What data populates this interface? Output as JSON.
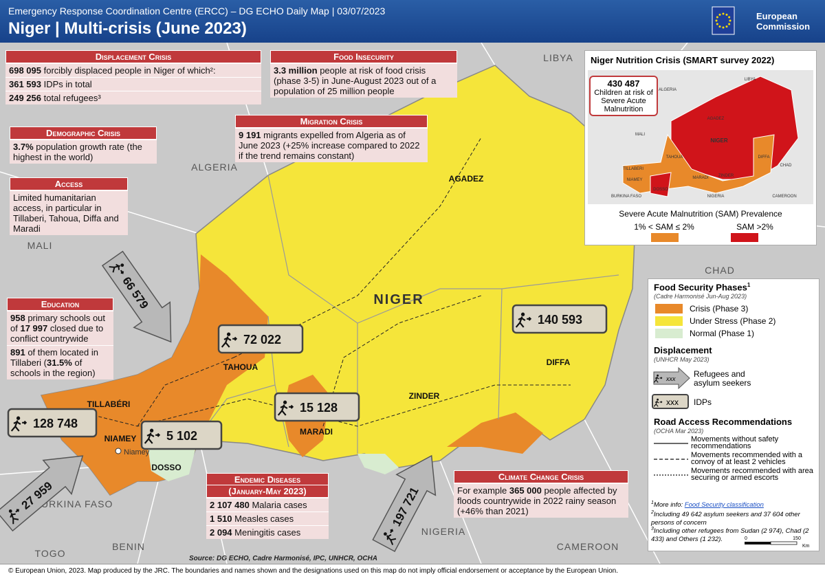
{
  "header": {
    "subtitle": "Emergency Response Coordination Centre (ERCC) – DG ECHO Daily Map | 03/07/2023",
    "title": "Niger | Multi-crisis (June 2023)",
    "logo": [
      "European",
      "Commission"
    ]
  },
  "boxes": {
    "displacement": {
      "title": "Displacement Crisis",
      "rows": [
        [
          {
            "b": "698 095"
          },
          " forcibly displaced people in Niger of which²:"
        ],
        [
          {
            "b": "361 593"
          },
          " IDPs in total"
        ],
        [
          {
            "b": "249 256"
          },
          " total refugees³"
        ]
      ]
    },
    "food": {
      "title": "Food Insecurity",
      "rows": [
        [
          {
            "b": "3.3 million"
          },
          "  people  at risk of food crisis (phase 3-5) in June-August 2023 out of a population of 25 million people"
        ]
      ]
    },
    "demographic": {
      "title": "Demographic Crisis",
      "rows": [
        [
          {
            "b": "3.7%"
          },
          " population growth rate (the highest in the world)"
        ]
      ]
    },
    "access": {
      "title": "Access",
      "rows": [
        [
          "Limited humanitarian access, in particular in Tillaberi, Tahoua, Diffa and Maradi"
        ]
      ]
    },
    "migration": {
      "title": "Migration Crisis",
      "rows": [
        [
          {
            "b": "9 191"
          },
          " migrants expelled from Algeria as of June 2023 (+25% increase compared to 2022 if the trend remains constant)"
        ]
      ]
    },
    "education": {
      "title": "Education",
      "rows": [
        [
          {
            "b": "958"
          },
          " primary schools out of ",
          {
            "b": "17 997"
          },
          " closed due to conflict countrywide"
        ],
        [
          {
            "b": "891"
          },
          " of them located in Tillaberi (",
          {
            "b": "31.5%"
          },
          " of schools in the region)"
        ]
      ]
    },
    "endemic": {
      "title": "Endemic Diseases",
      "subtitle": "(January-May 2023)",
      "rows": [
        [
          {
            "b": "2 107 480"
          },
          " Malaria cases"
        ],
        [
          {
            "b": "1 510"
          },
          " Measles cases"
        ],
        [
          {
            "b": "2 094"
          },
          " Meningitis cases"
        ]
      ]
    },
    "climate": {
      "title": "Climate Change Crisis",
      "rows": [
        [
          "For example ",
          {
            "b": "365 000"
          },
          " people affected by floods countrywide in 2022 rainy season (+46% than 2021)"
        ]
      ]
    }
  },
  "map": {
    "countries": [
      "LIBYA",
      "ALGERIA",
      "MALI",
      "CHAD",
      "BURKINA FASO",
      "NIGERIA",
      "BENIN",
      "TOGO",
      "CAMEROON"
    ],
    "country_main": "NIGER",
    "regions": [
      "AGADEZ",
      "TAHOUA",
      "TILLABÉRI",
      "NIAMEY",
      "DOSSO",
      "MARADI",
      "ZINDER",
      "DIFFA"
    ],
    "capital": "Niamey",
    "refugee_flows": [
      "66 579",
      "27 959",
      "197 721"
    ],
    "idps": [
      "72 022",
      "128 748",
      "5 102",
      "15 128",
      "140 593"
    ],
    "source": "Source: DG ECHO, Cadre Harmonisé, IPC, UNHCR, OCHA"
  },
  "nutrition": {
    "title": "Niger Nutrition Crisis (SMART survey 2022)",
    "callout_value": "430 487",
    "callout_text": "Children at risk of Severe Acute Malnutrition",
    "labels": [
      "NIGER",
      "MALI",
      "ALGERIA",
      "LIBYA",
      "CHAD",
      "TILLABERI",
      "TAHOUA",
      "AGADEZ",
      "DIFFA",
      "ZINDER",
      "MARADI",
      "NIAMEY",
      "DOSSO",
      "BURKINA FASO",
      "NIGERIA",
      "CAMEROON"
    ],
    "legend_title": "Severe Acute Malnutrition (SAM) Prevalence",
    "legend": [
      {
        "label": "1% < SAM ≤ 2%",
        "color": "#e8892a"
      },
      {
        "label": "SAM >2%",
        "color": "#d0141a"
      }
    ]
  },
  "legend": {
    "food_title": "Food Security Phases",
    "food_title_sup": "1",
    "food_source": "(Cadre Harmonisé Jun-Aug 2023)",
    "phases": [
      {
        "label": "Crisis (Phase 3)",
        "color": "#e8892a"
      },
      {
        "label": "Under Stress (Phase 2)",
        "color": "#f5e53a"
      },
      {
        "label": "Normal (Phase 1)",
        "color": "#d8ecd0"
      }
    ],
    "displacement_title": "Displacement",
    "displacement_source": "(UNHCR May 2023)",
    "symbol": "xxx",
    "refugees": "Refugees and asylum seekers",
    "idps": "IDPs",
    "road_title": "Road Access Recommendations",
    "road_source": "(OCHA Mar 2023)",
    "roads": [
      "Movements without safety recommendations",
      "Movements recommended with a convoy of at least 2 vehicles",
      "Movements recommended with area securing or armed escorts"
    ]
  },
  "footnotes": [
    {
      "mark": "1",
      "text": "More info: ",
      "link": "Food Security classification"
    },
    {
      "mark": "2",
      "text": "Including 49 642 asylum seekers and 37 604 other persons of concern"
    },
    {
      "mark": "3",
      "text": "Including other refugees from Sudan (2 974), Chad (2 433) and Others (1 232)."
    }
  ],
  "scale": [
    "0",
    "150",
    "Km"
  ],
  "footer": "© European Union, 2023. Map produced by the JRC. The boundaries and names shown and the designations used on this map do not imply official endorsement or acceptance by the European Union."
}
